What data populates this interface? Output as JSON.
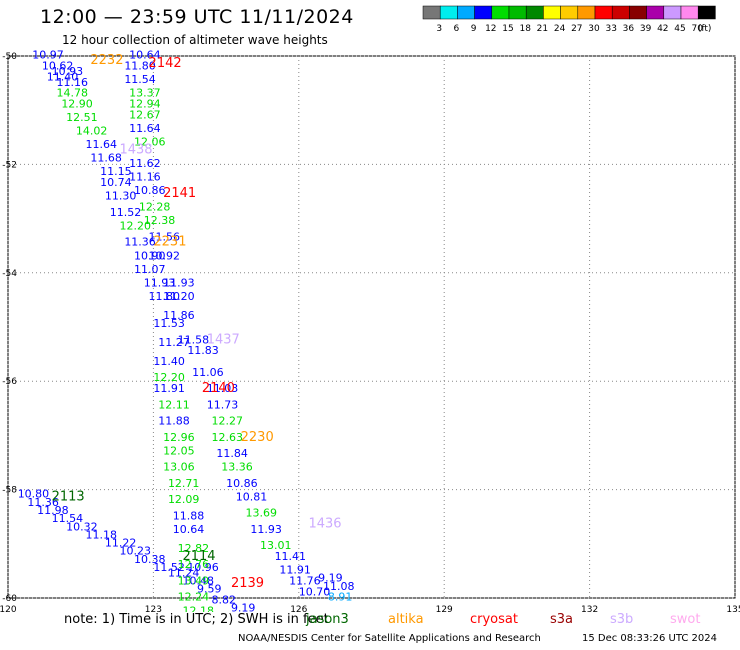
{
  "header": {
    "title": "12:00 — 23:59 UTC 11/11/2024",
    "subtitle": "12 hour collection of altimeter wave heights"
  },
  "colorbar": {
    "unit_label": "(ft)",
    "bins": [
      {
        "label": "3",
        "color": "#777777"
      },
      {
        "label": "6",
        "color": "#00eeee"
      },
      {
        "label": "9",
        "color": "#00aaff"
      },
      {
        "label": "12",
        "color": "#0000ff"
      },
      {
        "label": "15",
        "color": "#00dd00"
      },
      {
        "label": "18",
        "color": "#00bb00"
      },
      {
        "label": "21",
        "color": "#008800"
      },
      {
        "label": "24",
        "color": "#ffff00"
      },
      {
        "label": "27",
        "color": "#ffcc00"
      },
      {
        "label": "30",
        "color": "#ff9900"
      },
      {
        "label": "33",
        "color": "#ff0000"
      },
      {
        "label": "36",
        "color": "#cc0000"
      },
      {
        "label": "39",
        "color": "#880000"
      },
      {
        "label": "42",
        "color": "#aa00aa"
      },
      {
        "label": "45",
        "color": "#cc99ff"
      },
      {
        "label": "70",
        "color": "#ff88ee"
      },
      {
        "label": "",
        "color": "#000000"
      }
    ]
  },
  "footer": {
    "note": "note: 1) Time is in UTC; 2) SWH is in feet",
    "credit": "NOAA/NESDIS Center for Satellite Applications and Research",
    "timestamp": "15 Dec 08:33:26 UTC 2024"
  },
  "legend": [
    {
      "name": "jason3",
      "color": "#006600"
    },
    {
      "name": "altika",
      "color": "#ff9900"
    },
    {
      "name": "cryosat",
      "color": "#ff0000"
    },
    {
      "name": "s3a",
      "color": "#990000"
    },
    {
      "name": "s3b",
      "color": "#ccaaff"
    },
    {
      "name": "swot",
      "color": "#ffaaee"
    }
  ],
  "chart_data": {
    "type": "scatter",
    "title": "12 hour collection of altimeter wave heights",
    "xlabel": "",
    "ylabel": "",
    "xlim": [
      120,
      135
    ],
    "ylim": [
      -60,
      -50
    ],
    "x_ticks": [
      "120",
      "123",
      "126",
      "129",
      "132",
      "135"
    ],
    "y_ticks": [
      "-50",
      "-52",
      "-54",
      "-56",
      "-58",
      "-60"
    ],
    "grid": true,
    "pass_labels": [
      {
        "text": "2232",
        "lon": 121.7,
        "lat": -50.15,
        "color": "#ff9900"
      },
      {
        "text": "2142",
        "lon": 122.9,
        "lat": -50.2,
        "color": "#ff0000"
      },
      {
        "text": "1438",
        "lon": 122.3,
        "lat": -51.8,
        "color": "#ccaaff"
      },
      {
        "text": "2141",
        "lon": 123.2,
        "lat": -52.6,
        "color": "#ff0000"
      },
      {
        "text": "2231",
        "lon": 123.0,
        "lat": -53.5,
        "color": "#ff9900"
      },
      {
        "text": "1437",
        "lon": 124.1,
        "lat": -55.3,
        "color": "#ccaaff"
      },
      {
        "text": "2140",
        "lon": 124.0,
        "lat": -56.2,
        "color": "#ff0000"
      },
      {
        "text": "2230",
        "lon": 124.8,
        "lat": -57.1,
        "color": "#ff9900"
      },
      {
        "text": "2113",
        "lon": 120.9,
        "lat": -58.2,
        "color": "#006600"
      },
      {
        "text": "1436",
        "lon": 126.2,
        "lat": -58.7,
        "color": "#ccaaff"
      },
      {
        "text": "2114",
        "lon": 123.6,
        "lat": -59.3,
        "color": "#006600"
      },
      {
        "text": "2139",
        "lon": 124.6,
        "lat": -59.8,
        "color": "#ff0000"
      }
    ],
    "series": [
      {
        "name": "jason3",
        "color_legend": "#006600",
        "points": [
          {
            "lon": 120.2,
            "lat": -58.15,
            "value": 10.8,
            "label": "10.80",
            "color": "#0000ff"
          },
          {
            "lon": 120.4,
            "lat": -58.3,
            "value": 11.36,
            "label": "11.36",
            "color": "#0000ff"
          },
          {
            "lon": 120.6,
            "lat": -58.45,
            "value": 11.98,
            "label": "11.98",
            "color": "#0000ff"
          },
          {
            "lon": 120.9,
            "lat": -58.6,
            "value": 11.54,
            "label": "11.54",
            "color": "#0000ff"
          },
          {
            "lon": 121.2,
            "lat": -58.75,
            "value": 10.32,
            "label": "10.32",
            "color": "#0000ff"
          },
          {
            "lon": 121.6,
            "lat": -58.9,
            "value": 11.18,
            "label": "11.18",
            "color": "#0000ff"
          },
          {
            "lon": 122.0,
            "lat": -59.05,
            "value": 11.22,
            "label": "11.22",
            "color": "#0000ff"
          },
          {
            "lon": 122.3,
            "lat": -59.2,
            "value": 10.23,
            "label": "10.23",
            "color": "#0000ff"
          },
          {
            "lon": 122.6,
            "lat": -59.35,
            "value": 10.38,
            "label": "10.38",
            "color": "#0000ff"
          },
          {
            "lon": 123.0,
            "lat": -59.5,
            "value": 11.52,
            "label": "11.52",
            "color": "#0000ff"
          },
          {
            "lon": 123.3,
            "lat": -59.6,
            "value": 11.24,
            "label": "11.24",
            "color": "#0000ff"
          },
          {
            "lon": 123.7,
            "lat": -59.5,
            "value": 10.96,
            "label": "10.96",
            "color": "#0000ff"
          },
          {
            "lon": 123.6,
            "lat": -59.75,
            "value": 10.48,
            "label": "10.48",
            "color": "#0000ff"
          }
        ]
      },
      {
        "name": "s3b",
        "color_legend": "#ccaaff",
        "points": [
          {
            "lon": 122.5,
            "lat": -50.05,
            "value": 10.64,
            "label": "10.64",
            "color": "#0000ff"
          },
          {
            "lon": 122.4,
            "lat": -50.25,
            "value": 11.8,
            "label": "11.80",
            "color": "#0000ff"
          },
          {
            "lon": 122.4,
            "lat": -50.5,
            "value": 11.54,
            "label": "11.54",
            "color": "#0000ff"
          },
          {
            "lon": 122.5,
            "lat": -50.75,
            "value": 13.37,
            "label": "13.37",
            "color": "#00dd00"
          },
          {
            "lon": 122.5,
            "lat": -50.95,
            "value": 12.94,
            "label": "12.94",
            "color": "#00dd00"
          },
          {
            "lon": 122.5,
            "lat": -51.15,
            "value": 12.67,
            "label": "12.67",
            "color": "#00dd00"
          },
          {
            "lon": 122.5,
            "lat": -51.4,
            "value": 11.64,
            "label": "11.64",
            "color": "#0000ff"
          },
          {
            "lon": 122.6,
            "lat": -51.65,
            "value": 12.06,
            "label": "12.06",
            "color": "#00dd00"
          },
          {
            "lon": 122.5,
            "lat": -52.05,
            "value": 11.62,
            "label": "11.62",
            "color": "#0000ff"
          },
          {
            "lon": 122.5,
            "lat": -52.3,
            "value": 11.16,
            "label": "11.16",
            "color": "#0000ff"
          },
          {
            "lon": 122.6,
            "lat": -52.55,
            "value": 10.86,
            "label": "10.86",
            "color": "#0000ff"
          },
          {
            "lon": 122.7,
            "lat": -52.85,
            "value": 12.28,
            "label": "12.28",
            "color": "#00dd00"
          },
          {
            "lon": 122.8,
            "lat": -53.1,
            "value": 12.38,
            "label": "12.38",
            "color": "#00dd00"
          },
          {
            "lon": 122.9,
            "lat": -53.4,
            "value": 11.56,
            "label": "11.56",
            "color": "#0000ff"
          },
          {
            "lon": 122.9,
            "lat": -53.75,
            "value": 10.92,
            "label": "10.92",
            "color": "#0000ff"
          },
          {
            "lon": 123.2,
            "lat": -54.25,
            "value": 11.93,
            "label": "11.93",
            "color": "#0000ff"
          },
          {
            "lon": 123.2,
            "lat": -54.5,
            "value": 11.2,
            "label": "11.20",
            "color": "#0000ff"
          },
          {
            "lon": 123.2,
            "lat": -54.85,
            "value": 11.86,
            "label": "11.86",
            "color": "#0000ff"
          },
          {
            "lon": 123.5,
            "lat": -55.3,
            "value": 11.58,
            "label": "11.58",
            "color": "#0000ff"
          },
          {
            "lon": 123.7,
            "lat": -55.5,
            "value": 11.83,
            "label": "11.83",
            "color": "#0000ff"
          },
          {
            "lon": 123.8,
            "lat": -55.9,
            "value": 11.06,
            "label": "11.06",
            "color": "#0000ff"
          },
          {
            "lon": 124.1,
            "lat": -56.2,
            "value": 11.03,
            "label": "11.03",
            "color": "#0000ff"
          }
        ]
      },
      {
        "name": "s3a",
        "color_legend": "#990000",
        "points": [
          {
            "lon": 120.5,
            "lat": -50.05,
            "value": 10.97,
            "label": "10.97",
            "color": "#0000ff"
          },
          {
            "lon": 120.7,
            "lat": -50.25,
            "value": 10.62,
            "label": "10.62",
            "color": "#0000ff"
          },
          {
            "lon": 120.9,
            "lat": -50.35,
            "value": 10.93,
            "label": "10.93",
            "color": "#0000ff"
          },
          {
            "lon": 120.8,
            "lat": -50.45,
            "value": 11.4,
            "label": "11.40",
            "color": "#0000ff"
          },
          {
            "lon": 121.0,
            "lat": -50.55,
            "value": 11.16,
            "label": "11.16",
            "color": "#0000ff"
          },
          {
            "lon": 121.0,
            "lat": -50.75,
            "value": 14.78,
            "label": "14.78",
            "color": "#00dd00"
          },
          {
            "lon": 121.1,
            "lat": -50.95,
            "value": 12.9,
            "label": "12.90",
            "color": "#00dd00"
          },
          {
            "lon": 121.2,
            "lat": -51.2,
            "value": 12.51,
            "label": "12.51",
            "color": "#00dd00"
          },
          {
            "lon": 121.4,
            "lat": -51.45,
            "value": 14.02,
            "label": "14.02",
            "color": "#00dd00"
          },
          {
            "lon": 121.6,
            "lat": -51.7,
            "value": 11.64,
            "label": "11.64",
            "color": "#0000ff"
          },
          {
            "lon": 121.7,
            "lat": -51.95,
            "value": 11.68,
            "label": "11.68",
            "color": "#0000ff"
          },
          {
            "lon": 121.9,
            "lat": -52.2,
            "value": 11.15,
            "label": "11.15",
            "color": "#0000ff"
          },
          {
            "lon": 121.9,
            "lat": -52.4,
            "value": 10.74,
            "label": "10.74",
            "color": "#0000ff"
          },
          {
            "lon": 122.0,
            "lat": -52.65,
            "value": 11.3,
            "label": "11.30",
            "color": "#0000ff"
          },
          {
            "lon": 122.1,
            "lat": -52.95,
            "value": 11.52,
            "label": "11.52",
            "color": "#0000ff"
          },
          {
            "lon": 122.3,
            "lat": -53.2,
            "value": 12.2,
            "label": "12.20",
            "color": "#00dd00"
          },
          {
            "lon": 122.4,
            "lat": -53.5,
            "value": 11.36,
            "label": "11.36",
            "color": "#0000ff"
          },
          {
            "lon": 122.6,
            "lat": -53.75,
            "value": 10.9,
            "label": "10.90",
            "color": "#0000ff"
          },
          {
            "lon": 122.6,
            "lat": -54.0,
            "value": 11.07,
            "label": "11.07",
            "color": "#0000ff"
          },
          {
            "lon": 122.8,
            "lat": -54.25,
            "value": 11.93,
            "label": "11.93",
            "color": "#0000ff"
          },
          {
            "lon": 122.9,
            "lat": -54.5,
            "value": 11.8,
            "label": "11.80",
            "color": "#0000ff"
          },
          {
            "lon": 123.0,
            "lat": -55.0,
            "value": 11.53,
            "label": "11.53",
            "color": "#0000ff"
          },
          {
            "lon": 123.1,
            "lat": -55.35,
            "value": 11.27,
            "label": "11.27",
            "color": "#0000ff"
          },
          {
            "lon": 123.0,
            "lat": -55.7,
            "value": 11.4,
            "label": "11.40",
            "color": "#0000ff"
          },
          {
            "lon": 123.0,
            "lat": -56.0,
            "value": 12.2,
            "label": "12.20",
            "color": "#00dd00"
          },
          {
            "lon": 123.0,
            "lat": -56.2,
            "value": 11.91,
            "label": "11.91",
            "color": "#0000ff"
          },
          {
            "lon": 123.1,
            "lat": -56.5,
            "value": 12.11,
            "label": "12.11",
            "color": "#00dd00"
          },
          {
            "lon": 123.1,
            "lat": -56.8,
            "value": 11.88,
            "label": "11.88",
            "color": "#0000ff"
          },
          {
            "lon": 123.2,
            "lat": -57.1,
            "value": 12.96,
            "label": "12.96",
            "color": "#00dd00"
          },
          {
            "lon": 123.2,
            "lat": -57.35,
            "value": 12.05,
            "label": "12.05",
            "color": "#00dd00"
          },
          {
            "lon": 123.2,
            "lat": -57.65,
            "value": 13.06,
            "label": "13.06",
            "color": "#00dd00"
          },
          {
            "lon": 123.3,
            "lat": -57.95,
            "value": 12.71,
            "label": "12.71",
            "color": "#00dd00"
          },
          {
            "lon": 123.3,
            "lat": -58.25,
            "value": 12.09,
            "label": "12.09",
            "color": "#00dd00"
          },
          {
            "lon": 123.4,
            "lat": -58.55,
            "value": 11.88,
            "label": "11.88",
            "color": "#0000ff"
          },
          {
            "lon": 123.4,
            "lat": -58.8,
            "value": 10.64,
            "label": "10.64",
            "color": "#0000ff"
          },
          {
            "lon": 123.5,
            "lat": -59.15,
            "value": 12.82,
            "label": "12.82",
            "color": "#00dd00"
          },
          {
            "lon": 123.5,
            "lat": -59.45,
            "value": 12.76,
            "label": "12.76",
            "color": "#00dd00"
          },
          {
            "lon": 123.5,
            "lat": -59.75,
            "value": 13.49,
            "label": "13.49",
            "color": "#00dd00"
          },
          {
            "lon": 123.5,
            "lat": -60.05,
            "value": 12.24,
            "label": "12.24",
            "color": "#00dd00"
          },
          {
            "lon": 123.6,
            "lat": -60.3,
            "value": 12.18,
            "label": "12.18",
            "color": "#00dd00"
          }
        ]
      },
      {
        "name": "cryosat",
        "color_legend": "#ff0000",
        "points": [
          {
            "lon": 124.1,
            "lat": -56.5,
            "value": 11.73,
            "label": "11.73",
            "color": "#0000ff"
          },
          {
            "lon": 124.2,
            "lat": -56.8,
            "value": 12.27,
            "label": "12.27",
            "color": "#00dd00"
          },
          {
            "lon": 124.2,
            "lat": -57.1,
            "value": 12.63,
            "label": "12.63",
            "color": "#00dd00"
          },
          {
            "lon": 124.3,
            "lat": -57.4,
            "value": 11.84,
            "label": "11.84",
            "color": "#0000ff"
          },
          {
            "lon": 124.4,
            "lat": -57.65,
            "value": 13.36,
            "label": "13.36",
            "color": "#00dd00"
          },
          {
            "lon": 124.5,
            "lat": -57.95,
            "value": 10.86,
            "label": "10.86",
            "color": "#0000ff"
          },
          {
            "lon": 124.7,
            "lat": -58.2,
            "value": 10.81,
            "label": "10.81",
            "color": "#0000ff"
          },
          {
            "lon": 124.9,
            "lat": -58.5,
            "value": 13.69,
            "label": "13.69",
            "color": "#00dd00"
          },
          {
            "lon": 125.0,
            "lat": -58.8,
            "value": 11.93,
            "label": "11.93",
            "color": "#0000ff"
          },
          {
            "lon": 125.2,
            "lat": -59.1,
            "value": 13.01,
            "label": "13.01",
            "color": "#00dd00"
          },
          {
            "lon": 125.5,
            "lat": -59.3,
            "value": 11.41,
            "label": "11.41",
            "color": "#0000ff"
          },
          {
            "lon": 125.6,
            "lat": -59.55,
            "value": 11.91,
            "label": "11.91",
            "color": "#0000ff"
          },
          {
            "lon": 125.8,
            "lat": -59.75,
            "value": 11.76,
            "label": "11.76",
            "color": "#0000ff"
          },
          {
            "lon": 126.0,
            "lat": -59.95,
            "value": 10.7,
            "label": "10.70",
            "color": "#0000ff"
          },
          {
            "lon": 126.4,
            "lat": -59.7,
            "value": 9.19,
            "label": "9.19",
            "color": "#0000ff"
          },
          {
            "lon": 126.5,
            "lat": -59.85,
            "value": 11.08,
            "label": "11.08",
            "color": "#0000ff"
          },
          {
            "lon": 126.6,
            "lat": -60.05,
            "value": 8.91,
            "label": "8.91",
            "color": "#00aaff"
          },
          {
            "lon": 123.9,
            "lat": -59.9,
            "value": 9.59,
            "label": "9.59",
            "color": "#0000ff"
          },
          {
            "lon": 124.2,
            "lat": -60.1,
            "value": 8.82,
            "label": "8.82",
            "color": "#0000ff"
          },
          {
            "lon": 124.6,
            "lat": -60.25,
            "value": 9.19,
            "label": "9.19",
            "color": "#0000ff"
          }
        ]
      }
    ]
  }
}
